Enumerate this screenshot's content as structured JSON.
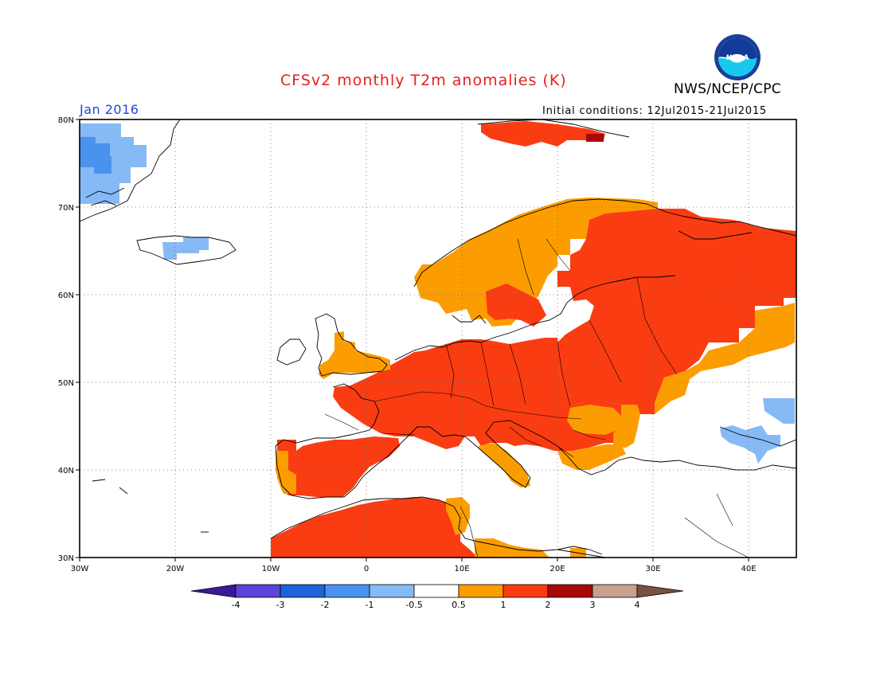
{
  "header": {
    "title": "CFSv2 monthly T2m anomalies (K)",
    "agency": "NWS/NCEP/CPC",
    "month_label": "Jan 2016",
    "initial_conditions": "Initial conditions: 12Jul2015-21Jul2015",
    "logo_text": "NOAA"
  },
  "map": {
    "region": "Europe",
    "lon_range": [
      -30,
      45
    ],
    "lat_range": [
      30,
      80
    ],
    "gridlines": "dotted",
    "lat_ticks": [
      "30N",
      "40N",
      "50N",
      "60N",
      "70N",
      "80N"
    ],
    "lon_ticks": [
      "30W",
      "20W",
      "10W",
      "0",
      "10E",
      "20E",
      "30E",
      "40E"
    ],
    "colors": {
      "lt_m4": "#3a1a9a",
      "m4_m3": "#5a46d8",
      "m3_m2": "#1e62d8",
      "m2_m1": "#4a92f0",
      "m1_m05": "#86baf6",
      "neutral": "#ffffff",
      "p05_p1": "#fb9d00",
      "p1_p2": "#fa3c12",
      "p2_p3": "#a80808",
      "p3_p4": "#c8a090",
      "gt_p4": "#7a5040"
    }
  },
  "colorbar": {
    "labels": [
      "-4",
      "-3",
      "-2",
      "-1",
      "-0.5",
      "0.5",
      "1",
      "2",
      "3",
      "4"
    ]
  }
}
